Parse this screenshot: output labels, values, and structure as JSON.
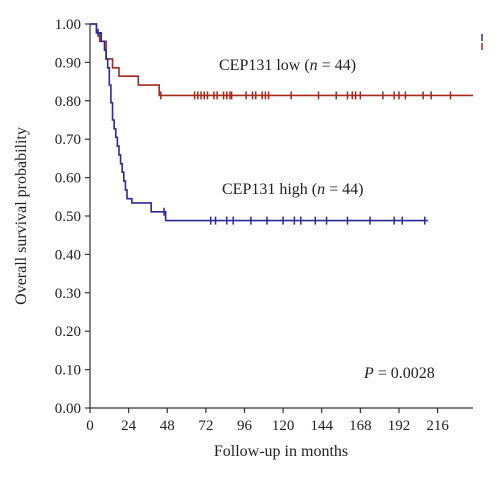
{
  "chart_data": {
    "type": "line",
    "subtype": "kaplan-meier",
    "xlabel": "Follow-up in months",
    "ylabel": "Overall survival probability",
    "xlim": [
      0,
      238
    ],
    "ylim": [
      0,
      1.0
    ],
    "x_ticks": [
      0,
      24,
      48,
      72,
      96,
      120,
      144,
      168,
      192,
      216
    ],
    "y_ticks": [
      0.0,
      0.1,
      0.2,
      0.3,
      0.4,
      0.5,
      0.6,
      0.7,
      0.8,
      0.9,
      1.0
    ],
    "y_tick_labels": [
      "0.00",
      "0.10",
      "0.20",
      "0.30",
      "0.40",
      "0.50",
      "0.60",
      "0.70",
      "0.80",
      "0.90",
      "1.00"
    ],
    "grid": false,
    "legend": "top-right",
    "series": [
      {
        "name": "CEP131 low",
        "label_main": "CEP131 low (",
        "label_n": "n",
        "label_rest": " = 44)",
        "color": "#a52a1c",
        "steps": [
          [
            0,
            1.0
          ],
          [
            4,
            0.977
          ],
          [
            6,
            0.955
          ],
          [
            10,
            0.909
          ],
          [
            14,
            0.886
          ],
          [
            18,
            0.864
          ],
          [
            30,
            0.841
          ],
          [
            43,
            0.814
          ],
          [
            238,
            0.814
          ]
        ],
        "censored": [
          [
            44,
            0.814
          ],
          [
            65,
            0.814
          ],
          [
            67,
            0.814
          ],
          [
            69,
            0.814
          ],
          [
            71,
            0.814
          ],
          [
            73,
            0.814
          ],
          [
            77,
            0.814
          ],
          [
            79,
            0.814
          ],
          [
            83,
            0.814
          ],
          [
            85,
            0.814
          ],
          [
            87,
            0.814
          ],
          [
            88,
            0.814
          ],
          [
            97,
            0.814
          ],
          [
            101,
            0.814
          ],
          [
            103,
            0.814
          ],
          [
            107,
            0.814
          ],
          [
            109,
            0.814
          ],
          [
            111,
            0.814
          ],
          [
            125,
            0.814
          ],
          [
            142,
            0.814
          ],
          [
            153,
            0.814
          ],
          [
            160,
            0.814
          ],
          [
            163,
            0.814
          ],
          [
            165,
            0.814
          ],
          [
            168,
            0.814
          ],
          [
            182,
            0.814
          ],
          [
            189,
            0.814
          ],
          [
            192,
            0.814
          ],
          [
            196,
            0.814
          ],
          [
            207,
            0.814
          ],
          [
            212,
            0.814
          ],
          [
            224,
            0.814
          ]
        ]
      },
      {
        "name": "CEP131 high",
        "label_main": "CEP131 high (",
        "label_n": "n",
        "label_rest": " = 44)",
        "color": "#2a2a9a",
        "steps": [
          [
            0,
            1.0
          ],
          [
            4,
            0.977
          ],
          [
            7,
            0.955
          ],
          [
            9,
            0.932
          ],
          [
            10,
            0.909
          ],
          [
            11,
            0.886
          ],
          [
            12,
            0.841
          ],
          [
            13,
            0.795
          ],
          [
            14,
            0.75
          ],
          [
            15,
            0.727
          ],
          [
            16,
            0.705
          ],
          [
            17,
            0.682
          ],
          [
            18,
            0.659
          ],
          [
            19,
            0.636
          ],
          [
            20,
            0.614
          ],
          [
            21,
            0.591
          ],
          [
            22,
            0.568
          ],
          [
            23,
            0.545
          ],
          [
            26,
            0.534
          ],
          [
            38,
            0.511
          ],
          [
            47,
            0.488
          ],
          [
            210,
            0.488
          ]
        ],
        "censored": [
          [
            5,
            0.977
          ],
          [
            46,
            0.511
          ],
          [
            75,
            0.488
          ],
          [
            78,
            0.488
          ],
          [
            85,
            0.488
          ],
          [
            89,
            0.488
          ],
          [
            100,
            0.488
          ],
          [
            110,
            0.488
          ],
          [
            120,
            0.488
          ],
          [
            127,
            0.488
          ],
          [
            131,
            0.488
          ],
          [
            140,
            0.488
          ],
          [
            147,
            0.488
          ],
          [
            160,
            0.488
          ],
          [
            174,
            0.488
          ],
          [
            189,
            0.488
          ],
          [
            194,
            0.488
          ],
          [
            208,
            0.488
          ]
        ]
      }
    ],
    "annotations": {
      "p_value_symbol": "P",
      "p_value_rest": " = 0.0028"
    }
  }
}
